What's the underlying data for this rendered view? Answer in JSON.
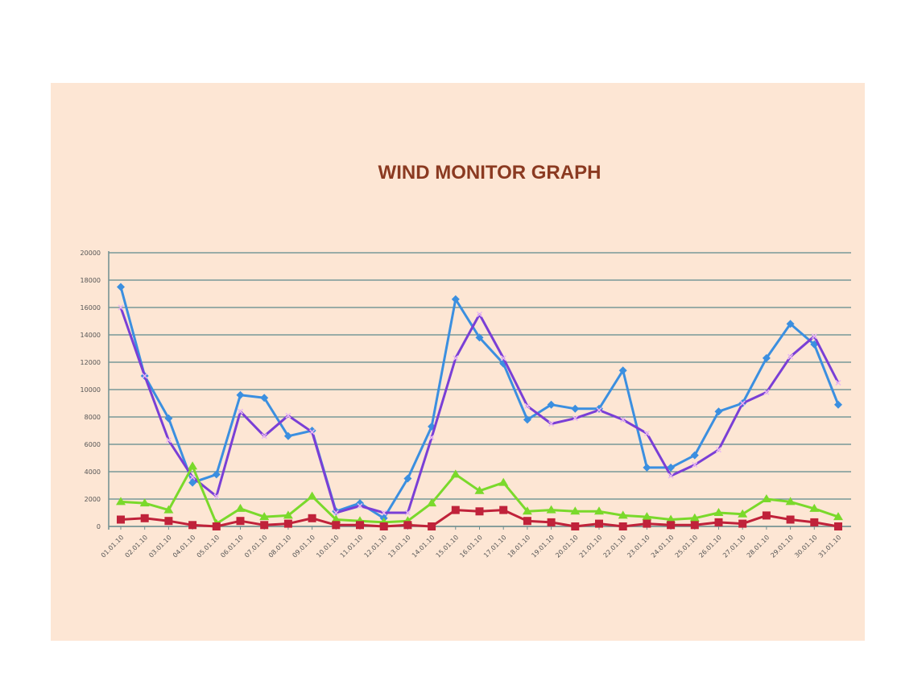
{
  "chart_data": {
    "type": "line",
    "title": "WIND MONITOR GRAPH",
    "xlabel": "",
    "ylabel": "",
    "ylim": [
      0,
      20000
    ],
    "yticks": [
      "0",
      "2000",
      "4000",
      "6000",
      "8000",
      "10000",
      "12000",
      "14000",
      "16000",
      "18000",
      "20000"
    ],
    "grid": true,
    "legend": "none",
    "categories": [
      "01.01.10",
      "02.01.10",
      "03.01.10",
      "04.01.10",
      "05.01.10",
      "06.01.10",
      "07.01.10",
      "08.01.10",
      "09.01.10",
      "10.01.10",
      "11.01.10",
      "12.01.10",
      "13.01.10",
      "14.01.10",
      "15.01.10",
      "16.01.10",
      "17.01.10",
      "18.01.10",
      "19.01.10",
      "20.01.10",
      "21.01.10",
      "22.01.10",
      "23.01.10",
      "24.01.10",
      "25.01.10",
      "26.01.10",
      "27.01.10",
      "28.01.10",
      "29.01.10",
      "30.01.10",
      "31.01.10"
    ],
    "series": [
      {
        "color": "#3b8fe0",
        "marker": "diamond",
        "values": [
          17500,
          11000,
          7900,
          3200,
          3800,
          9600,
          9400,
          6600,
          7000,
          1100,
          1700,
          600,
          3500,
          7300,
          16600,
          13800,
          11900,
          7800,
          8900,
          8600,
          8600,
          11400,
          4300,
          4300,
          5200,
          8400,
          9000,
          12300,
          14800,
          13300,
          8900
        ]
      },
      {
        "color": "#7a3fd6",
        "marker": "x",
        "values": [
          16000,
          11000,
          6300,
          3600,
          2200,
          8400,
          6600,
          8100,
          6900,
          1000,
          1500,
          1000,
          1000,
          6500,
          12300,
          15500,
          12300,
          8800,
          7500,
          7900,
          8500,
          7800,
          6800,
          3700,
          4500,
          5600,
          9000,
          9800,
          12400,
          13900,
          10500
        ]
      },
      {
        "color": "#7ad92b",
        "marker": "triangle",
        "values": [
          1800,
          1700,
          1200,
          4400,
          200,
          1300,
          700,
          800,
          2200,
          500,
          400,
          300,
          400,
          1700,
          3800,
          2600,
          3200,
          1100,
          1200,
          1100,
          1100,
          800,
          700,
          500,
          600,
          1000,
          900,
          2000,
          1800,
          1300,
          700
        ]
      },
      {
        "color": "#c0223a",
        "marker": "square",
        "values": [
          500,
          600,
          400,
          100,
          0,
          400,
          100,
          200,
          600,
          100,
          100,
          0,
          100,
          0,
          1200,
          1100,
          1200,
          400,
          300,
          0,
          200,
          0,
          200,
          100,
          100,
          300,
          200,
          800,
          500,
          300,
          0
        ]
      }
    ],
    "colors": {
      "background": "#fde6d4",
      "grid": "#5e8a8c",
      "axis": "#6f8e90",
      "title": "#8b3a21"
    }
  }
}
